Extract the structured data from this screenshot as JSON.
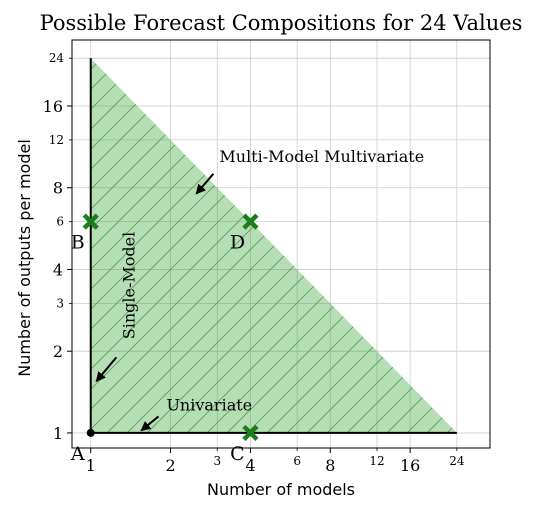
{
  "chart_data": {
    "type": "area",
    "title": "Possible Forecast Compositions for 24 Values",
    "xlabel": "Number of models",
    "ylabel": "Number of outputs per model",
    "x_scale": "log",
    "y_scale": "log",
    "xlim": [
      0.85,
      32
    ],
    "ylim": [
      0.88,
      28
    ],
    "grid": true,
    "x_major_ticks": [
      {
        "value": 1,
        "label": "1"
      },
      {
        "value": 2,
        "label": "2"
      },
      {
        "value": 4,
        "label": "4"
      },
      {
        "value": 8,
        "label": "8"
      },
      {
        "value": 16,
        "label": "16"
      }
    ],
    "x_minor_ticks": [
      {
        "value": 3,
        "label": "3"
      },
      {
        "value": 6,
        "label": "6"
      },
      {
        "value": 12,
        "label": "12"
      },
      {
        "value": 24,
        "label": "24"
      }
    ],
    "y_major_ticks": [
      {
        "value": 1,
        "label": "1"
      },
      {
        "value": 2,
        "label": "2"
      },
      {
        "value": 4,
        "label": "4"
      },
      {
        "value": 8,
        "label": "8"
      },
      {
        "value": 16,
        "label": "16"
      }
    ],
    "y_minor_ticks": [
      {
        "value": 3,
        "label": "3"
      },
      {
        "value": 6,
        "label": "6"
      },
      {
        "value": 12,
        "label": "12"
      },
      {
        "value": 24,
        "label": "24"
      }
    ],
    "region": {
      "vertices": [
        [
          1,
          1
        ],
        [
          1,
          24
        ],
        [
          24,
          1
        ]
      ],
      "color": "#2ca02c",
      "hatch": "/"
    },
    "lines": [
      {
        "x": [
          1,
          1
        ],
        "y": [
          1,
          24
        ],
        "color": "#000000"
      },
      {
        "x": [
          1,
          24
        ],
        "y": [
          1,
          1
        ],
        "color": "#000000"
      }
    ],
    "points": [
      {
        "x": 1,
        "y": 1,
        "label": "A",
        "marker": "dot",
        "color": "#000000"
      },
      {
        "x": 1,
        "y": 6,
        "label": "B",
        "marker": "x",
        "color": "#1a7f1a"
      },
      {
        "x": 4,
        "y": 1,
        "label": "C",
        "marker": "x",
        "color": "#1a7f1a"
      },
      {
        "x": 4,
        "y": 6,
        "label": "D",
        "marker": "x",
        "color": "#1a7f1a"
      }
    ],
    "annotations": [
      {
        "text": "Multi-Model Multivariate",
        "arrow_to": [
          2.5,
          7.6
        ],
        "arrow_from": [
          2.9,
          9.0
        ]
      },
      {
        "text": "Single-Model",
        "arrow_to": [
          1.05,
          1.55
        ],
        "arrow_from": [
          1.25,
          1.9
        ]
      },
      {
        "text": "Univariate",
        "arrow_to": [
          1.55,
          1.02
        ],
        "arrow_from": [
          1.8,
          1.15
        ]
      }
    ]
  }
}
